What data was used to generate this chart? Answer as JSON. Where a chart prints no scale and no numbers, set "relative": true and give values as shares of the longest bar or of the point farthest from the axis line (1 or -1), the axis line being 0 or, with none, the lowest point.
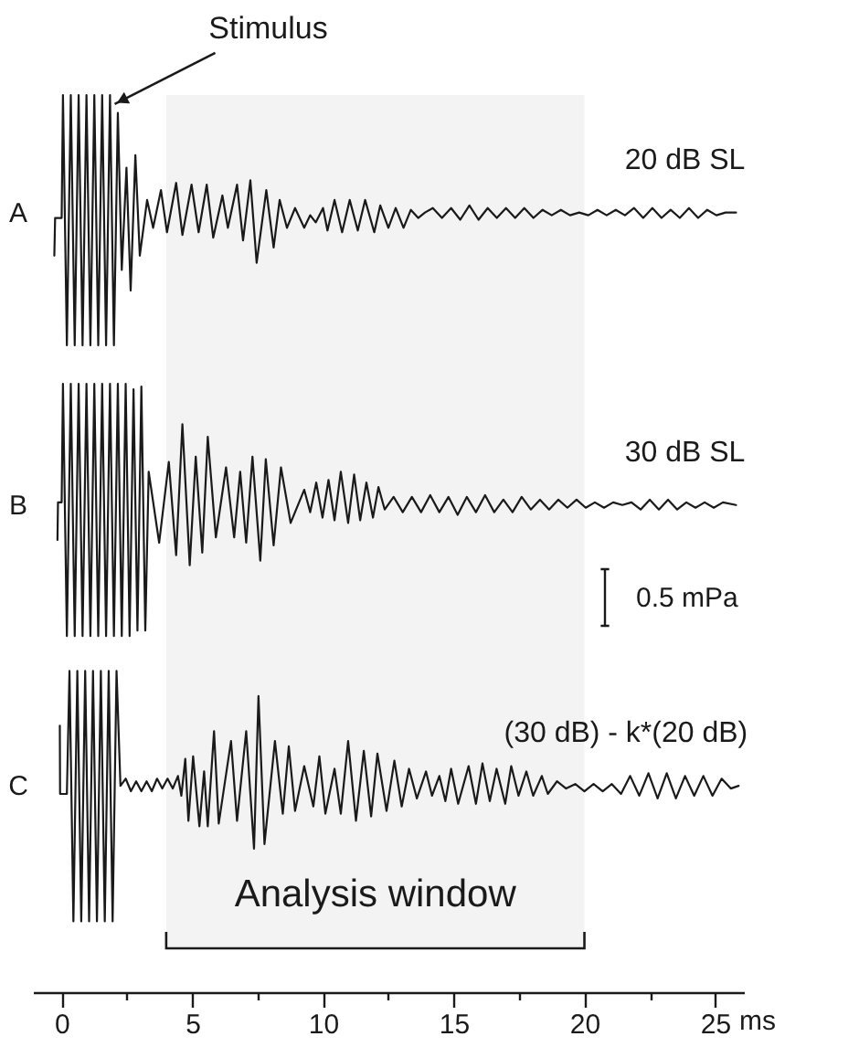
{
  "chart_data": {
    "type": "line",
    "relative": true,
    "xlim": [
      -1.1,
      26.1
    ],
    "xlabel": "ms",
    "xticks": [
      0,
      {
        "value": 2.5,
        "label": null
      },
      5,
      {
        "value": 7.5,
        "label": null
      },
      10,
      {
        "value": 12.5,
        "label": null
      },
      15,
      {
        "value": 17.5,
        "label": null
      },
      20,
      {
        "value": 22.5,
        "label": null
      },
      25
    ],
    "annotations": [
      {
        "text": "Stimulus",
        "x": 2.03,
        "y": 0.99
      },
      {
        "text": "20 dB SL",
        "x": 25.8,
        "y": 0.869
      },
      {
        "text": "30 dB SL",
        "x": 25.8,
        "y": 0.543
      },
      {
        "text": "(30 dB) - k*(20 dB)",
        "x": 25.9,
        "y": 0.23
      },
      "0.5 mPa"
    ],
    "bands": [
      {
        "axis": "x",
        "from": 4,
        "to": 20,
        "label": "Analysis window"
      }
    ],
    "series": [
      {
        "name": "A",
        "color": "#1a1a1a",
        "x": [
          -0.28,
          -0.25,
          0.0,
          0.05,
          0.2,
          0.35,
          0.5,
          0.65,
          0.8,
          0.95,
          1.1,
          1.25,
          1.4,
          1.55,
          1.7,
          1.85,
          2.0,
          2.15,
          2.3,
          2.48,
          2.64,
          2.82,
          2.99,
          3.27,
          3.5,
          3.8,
          4.03,
          4.38,
          4.62,
          4.97,
          5.24,
          5.55,
          5.8,
          6.15,
          6.36,
          6.71,
          6.94,
          7.22,
          7.46,
          7.83,
          8.11,
          8.34,
          8.62,
          8.93,
          9.28,
          9.51,
          9.72,
          10.0,
          10.17,
          10.44,
          10.73,
          11.02,
          11.33,
          11.61,
          11.96,
          12.19,
          12.5,
          12.78,
          13.08,
          13.36,
          13.64,
          13.9,
          14.2,
          14.55,
          14.9,
          15.25,
          15.6,
          15.95,
          16.3,
          16.65,
          17.0,
          17.35,
          17.7,
          18.05,
          18.4,
          18.75,
          19.1,
          19.45,
          19.8,
          20.15,
          20.5,
          20.85,
          21.2,
          21.55,
          21.9,
          22.25,
          22.6,
          22.95,
          23.3,
          23.65,
          24.0,
          24.35,
          24.7,
          25.05,
          25.4,
          25.8
        ],
        "values": [
          0.821,
          0.863,
          0.863,
          1,
          0.721,
          1,
          0.721,
          1,
          0.721,
          1,
          0.721,
          1,
          0.721,
          1,
          0.721,
          1,
          0.721,
          0.98,
          0.805,
          0.919,
          0.782,
          0.933,
          0.821,
          0.883,
          0.852,
          0.894,
          0.847,
          0.902,
          0.844,
          0.9,
          0.847,
          0.9,
          0.841,
          0.888,
          0.852,
          0.9,
          0.838,
          0.905,
          0.813,
          0.894,
          0.83,
          0.883,
          0.852,
          0.874,
          0.852,
          0.866,
          0.858,
          0.874,
          0.849,
          0.883,
          0.847,
          0.883,
          0.849,
          0.883,
          0.847,
          0.877,
          0.852,
          0.874,
          0.852,
          0.872,
          0.863,
          0.869,
          0.874,
          0.863,
          0.874,
          0.861,
          0.877,
          0.861,
          0.874,
          0.863,
          0.874,
          0.863,
          0.874,
          0.863,
          0.872,
          0.866,
          0.872,
          0.866,
          0.869,
          0.866,
          0.872,
          0.866,
          0.872,
          0.866,
          0.874,
          0.863,
          0.874,
          0.863,
          0.872,
          0.863,
          0.874,
          0.863,
          0.872,
          0.866,
          0.869,
          0.869
        ]
      },
      {
        "name": "B",
        "color": "#1a1a1a",
        "x": [
          -0.16,
          -0.14,
          0.0,
          0.05,
          0.2,
          0.35,
          0.5,
          0.65,
          0.8,
          0.95,
          1.1,
          1.25,
          1.4,
          1.55,
          1.7,
          1.85,
          2.0,
          2.15,
          2.3,
          2.45,
          2.6,
          2.75,
          2.9,
          3.05,
          3.2,
          3.33,
          3.73,
          4.1,
          4.38,
          4.62,
          4.9,
          5.13,
          5.38,
          5.59,
          5.9,
          6.29,
          6.6,
          6.83,
          7.06,
          7.3,
          7.6,
          7.81,
          8.11,
          8.39,
          8.76,
          9.28,
          9.51,
          9.74,
          9.98,
          10.21,
          10.44,
          10.68,
          10.96,
          11.19,
          11.42,
          11.66,
          11.91,
          12.12,
          12.36,
          12.7,
          13.05,
          13.4,
          13.75,
          14.1,
          14.45,
          14.8,
          15.15,
          15.5,
          15.85,
          16.2,
          16.55,
          16.9,
          17.25,
          17.6,
          17.95,
          18.3,
          18.65,
          19.0,
          19.35,
          19.7,
          20.05,
          20.4,
          20.75,
          21.1,
          21.45,
          21.8,
          22.15,
          22.5,
          22.85,
          23.2,
          23.55,
          23.9,
          24.25,
          24.6,
          24.95,
          25.3,
          25.8
        ],
        "values": [
          0.504,
          0.546,
          0.546,
          0.678,
          0.397,
          0.678,
          0.397,
          0.678,
          0.397,
          0.678,
          0.397,
          0.678,
          0.397,
          0.678,
          0.397,
          0.678,
          0.397,
          0.678,
          0.397,
          0.678,
          0.397,
          0.672,
          0.403,
          0.675,
          0.403,
          0.58,
          0.501,
          0.591,
          0.487,
          0.633,
          0.476,
          0.597,
          0.49,
          0.619,
          0.507,
          0.585,
          0.507,
          0.58,
          0.501,
          0.597,
          0.481,
          0.594,
          0.498,
          0.585,
          0.523,
          0.56,
          0.535,
          0.568,
          0.529,
          0.571,
          0.526,
          0.58,
          0.523,
          0.577,
          0.526,
          0.568,
          0.529,
          0.563,
          0.538,
          0.552,
          0.535,
          0.552,
          0.535,
          0.554,
          0.535,
          0.552,
          0.532,
          0.552,
          0.535,
          0.554,
          0.535,
          0.549,
          0.535,
          0.552,
          0.538,
          0.549,
          0.538,
          0.549,
          0.54,
          0.549,
          0.54,
          0.546,
          0.54,
          0.546,
          0.543,
          0.546,
          0.538,
          0.549,
          0.538,
          0.549,
          0.538,
          0.546,
          0.54,
          0.546,
          0.54,
          0.546,
          0.543
        ]
      },
      {
        "name": "C",
        "color": "#1a1a1a",
        "x": [
          -0.07,
          -0.06,
          0.2,
          0.3,
          0.45,
          0.6,
          0.75,
          0.9,
          1.05,
          1.2,
          1.35,
          1.5,
          1.65,
          1.8,
          1.95,
          2.1,
          2.25,
          2.45,
          2.65,
          2.85,
          3.05,
          3.25,
          3.45,
          3.65,
          3.85,
          4.05,
          4.25,
          4.45,
          4.58,
          4.73,
          4.85,
          5.03,
          5.27,
          5.45,
          5.59,
          5.83,
          6.01,
          6.48,
          6.71,
          7.06,
          7.36,
          7.53,
          7.76,
          8.16,
          8.46,
          8.69,
          8.93,
          9.28,
          9.63,
          9.86,
          10.09,
          10.44,
          10.68,
          10.96,
          11.26,
          11.56,
          11.84,
          12.08,
          12.43,
          12.73,
          13.01,
          13.29,
          13.59,
          13.94,
          14.17,
          14.45,
          14.68,
          14.9,
          15.17,
          15.57,
          15.85,
          16.1,
          16.38,
          16.64,
          16.97,
          17.2,
          17.48,
          17.78,
          18.04,
          18.37,
          18.6,
          18.95,
          19.3,
          19.65,
          20.0,
          20.35,
          20.7,
          21.05,
          21.4,
          21.75,
          22.1,
          22.45,
          22.8,
          23.15,
          23.5,
          23.85,
          24.2,
          24.55,
          24.9,
          25.25,
          25.6,
          25.9
        ],
        "values": [
          0.297,
          0.221,
          0.221,
          0.358,
          0.079,
          0.358,
          0.079,
          0.358,
          0.079,
          0.358,
          0.079,
          0.358,
          0.079,
          0.358,
          0.079,
          0.358,
          0.23,
          0.238,
          0.224,
          0.235,
          0.224,
          0.235,
          0.224,
          0.238,
          0.227,
          0.238,
          0.227,
          0.241,
          0.219,
          0.26,
          0.191,
          0.263,
          0.185,
          0.246,
          0.185,
          0.291,
          0.188,
          0.28,
          0.191,
          0.291,
          0.16,
          0.33,
          0.165,
          0.28,
          0.199,
          0.274,
          0.202,
          0.252,
          0.207,
          0.263,
          0.199,
          0.249,
          0.199,
          0.28,
          0.191,
          0.269,
          0.196,
          0.266,
          0.202,
          0.258,
          0.207,
          0.249,
          0.216,
          0.246,
          0.219,
          0.241,
          0.213,
          0.249,
          0.21,
          0.252,
          0.21,
          0.255,
          0.213,
          0.249,
          0.21,
          0.252,
          0.219,
          0.246,
          0.219,
          0.241,
          0.221,
          0.235,
          0.227,
          0.232,
          0.224,
          0.232,
          0.224,
          0.232,
          0.221,
          0.241,
          0.219,
          0.244,
          0.216,
          0.244,
          0.216,
          0.241,
          0.219,
          0.241,
          0.219,
          0.238,
          0.227,
          0.23
        ]
      }
    ]
  }
}
